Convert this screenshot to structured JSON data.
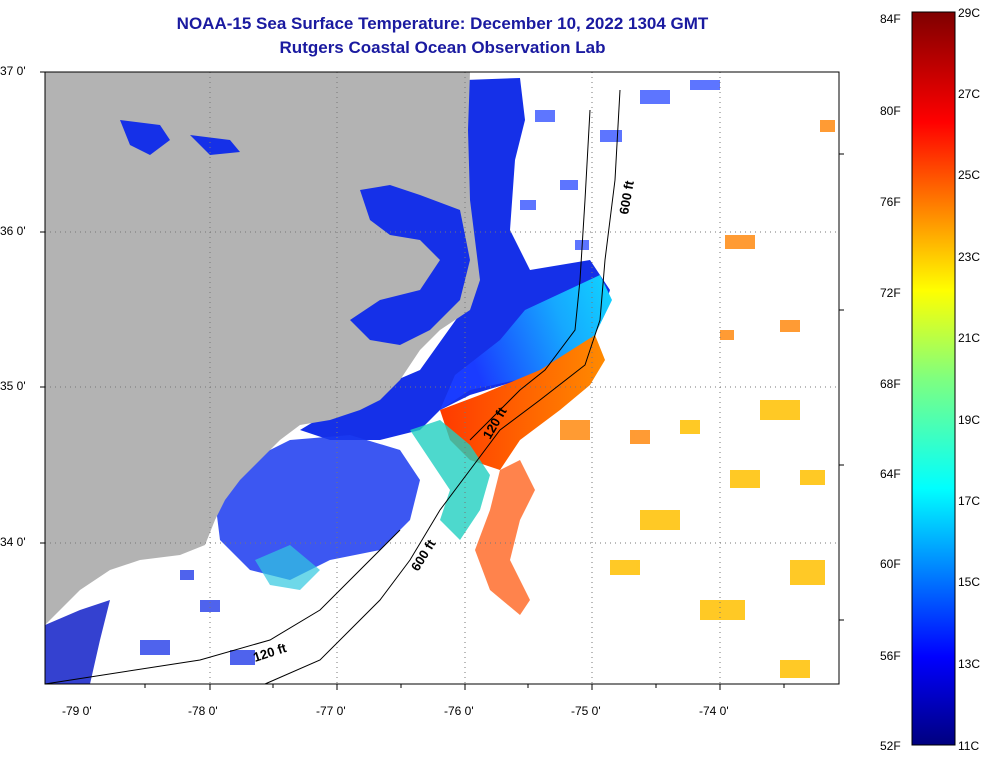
{
  "header": {
    "title": "NOAA-15 Sea Surface Temperature:  December 10, 2022 1304 GMT",
    "subtitle": "Rutgers Coastal Ocean Observation Lab"
  },
  "map": {
    "lat_labels": [
      "37 0'",
      "36 0'",
      "35 0'",
      "34 0'"
    ],
    "lon_labels": [
      "-79 0'",
      "-78 0'",
      "-77 0'",
      "-76 0'",
      "-75 0'",
      "-74 0'"
    ],
    "isobaths": [
      "600 ft",
      "120 ft",
      "600 ft",
      "120 ft"
    ]
  },
  "colorbar": {
    "f_labels": [
      "84F",
      "80F",
      "76F",
      "72F",
      "68F",
      "64F",
      "60F",
      "56F",
      "52F"
    ],
    "c_labels": [
      "29C",
      "27C",
      "25C",
      "23C",
      "21C",
      "19C",
      "17C",
      "15C",
      "13C",
      "11C"
    ]
  },
  "colors": {
    "land": "#b3b3b3",
    "title": "#1a1aa0"
  }
}
